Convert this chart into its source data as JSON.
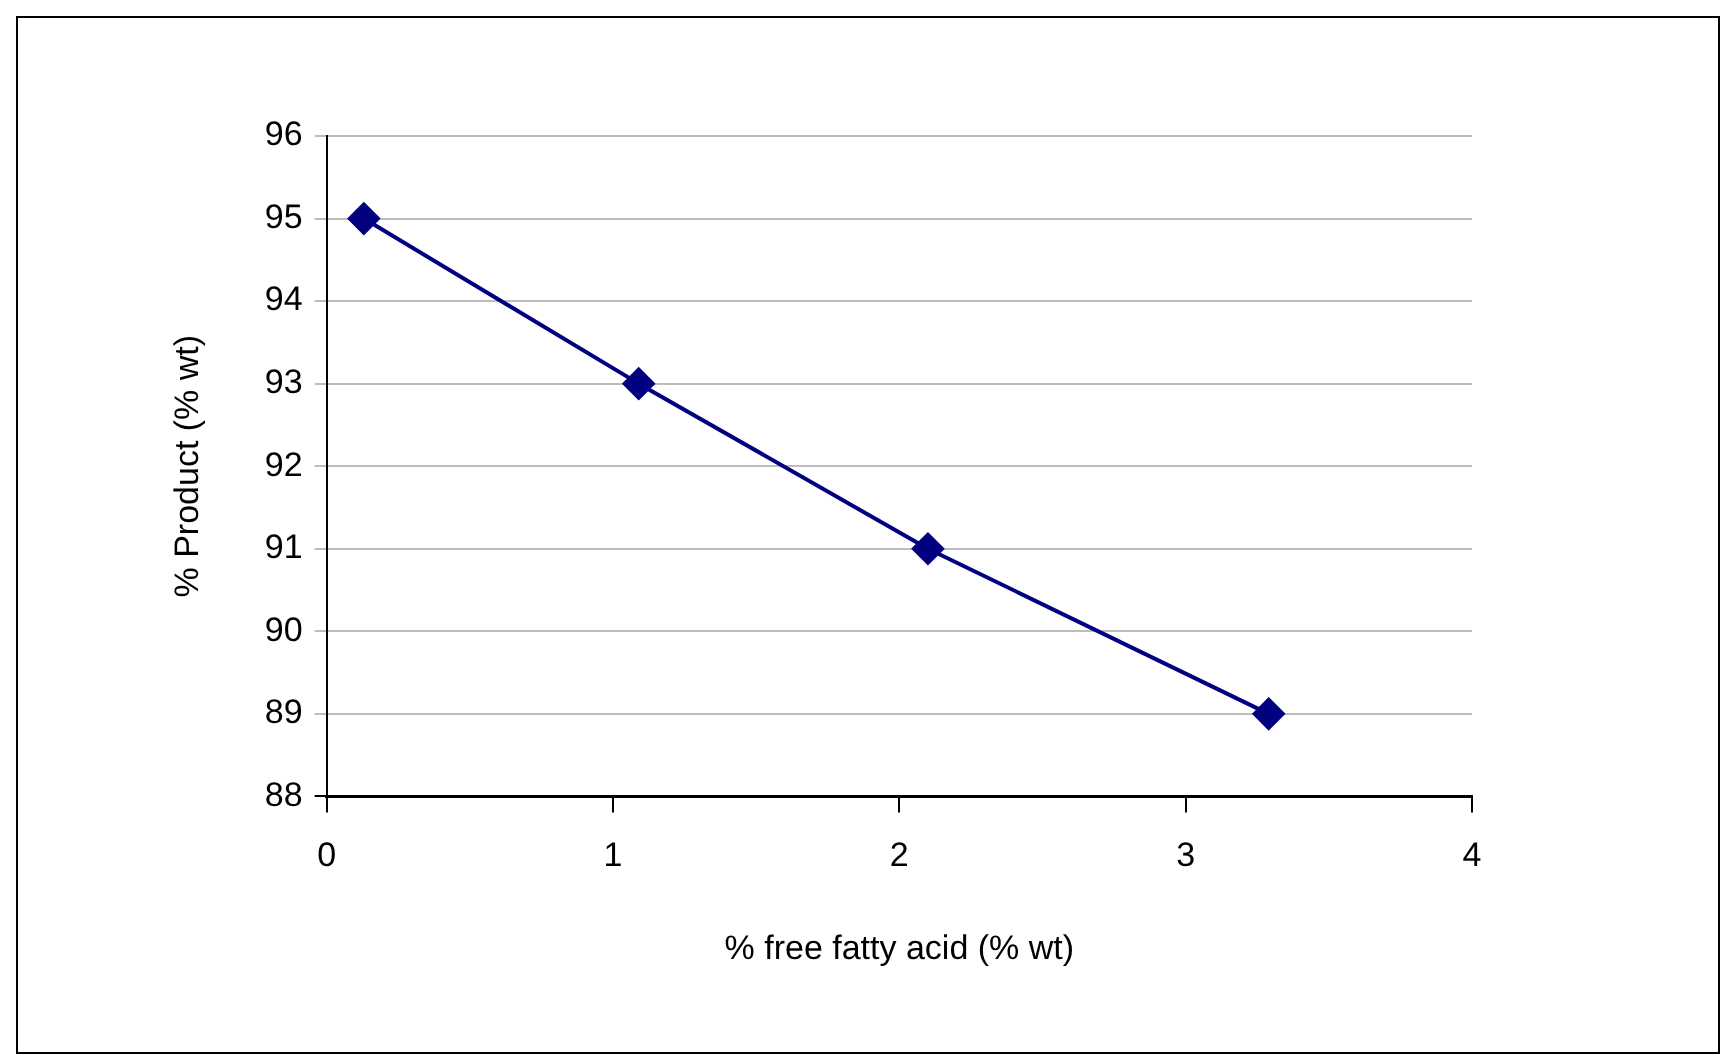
{
  "chart_data": {
    "type": "line",
    "xlabel": "% free fatty acid (% wt)",
    "ylabel": "% Product (% wt)",
    "x": [
      0.13,
      1.09,
      2.1,
      3.29
    ],
    "series": [
      {
        "color": "#000080",
        "values": [
          95,
          93,
          91,
          89
        ]
      }
    ],
    "xlim": [
      0,
      4
    ],
    "xticks": [
      0,
      1,
      2,
      3,
      4
    ],
    "ylim": [
      88,
      96
    ],
    "yticks": [
      88,
      89,
      90,
      91,
      92,
      93,
      94,
      95,
      96
    ],
    "grid": "y",
    "marker": "diamond",
    "line_style": "solid",
    "legend": false
  }
}
